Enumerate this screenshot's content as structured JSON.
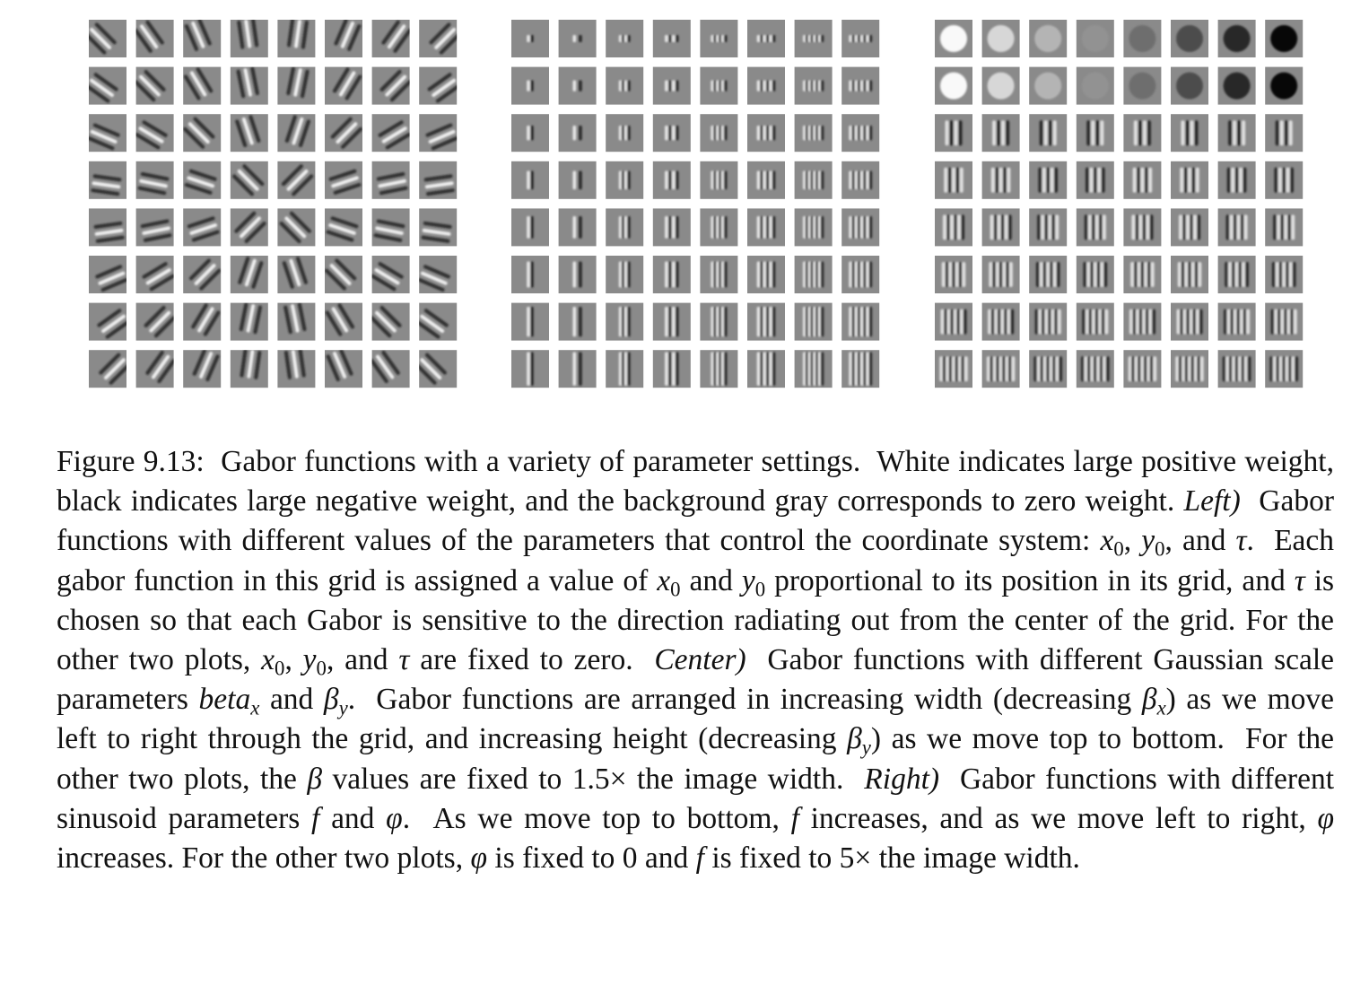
{
  "caption": {
    "fig": "Figure 9.13:",
    "s1": "Gabor functions with a variety of parameter settings.",
    "s2": "White indicates large positive weight, black indicates large negative weight, and the background gray corresponds to zero weight.",
    "left_label": "Left)",
    "s3a": "Gabor functions with different values of the parameters that control the coordinate system:",
    "s3b": ", and",
    "s4a": "Each gabor function in this grid is assigned a value of",
    "s4b": "and",
    "s4c": "proportional to its position in its grid, and",
    "s4d": "is chosen so that each Gabor is sensitive to the direction radiating out from the center of the grid.",
    "s5a": "For the other two plots,",
    "s5b": ", and",
    "s5c": "are fixed to zero.",
    "center_label": "Center)",
    "s6a": "Gabor functions with different Gaussian scale parameters",
    "beta_x_text": "beta",
    "s6b": "and",
    "s7a": "Gabor functions are arranged in increasing width (decreasing",
    "s7b": ") as we move left to right through the grid, and increasing height (decreasing",
    "s7c": ") as we move top to bottom.",
    "s8a": "For the other two plots, the",
    "s8b": "values are fixed to 1.5× the image width.",
    "right_label": "Right)",
    "s9a": "Gabor functions with different sinusoid parameters",
    "s9b": "and",
    "s10a": "As we move top to bottom,",
    "s10b": "increases, and as we move left to right,",
    "s10c": "increases.",
    "s11a": "For the other two plots,",
    "s11b": "is fixed to 0 and",
    "s11c": "is fixed to 5× the image width.",
    "sym_x0": "x",
    "sym_y0": "y",
    "sub0": "0",
    "sym_tau": "τ",
    "sym_beta": "β",
    "sub_x": "x",
    "sub_y": "y",
    "sym_f": "f",
    "sym_phi": "φ",
    "period": ".",
    "comma": ","
  },
  "grids": [
    {
      "name": "left-grid",
      "rows": 8,
      "cols": 8
    },
    {
      "name": "center-grid",
      "rows": 8,
      "cols": 8
    },
    {
      "name": "right-grid",
      "rows": 8,
      "cols": 8
    }
  ]
}
